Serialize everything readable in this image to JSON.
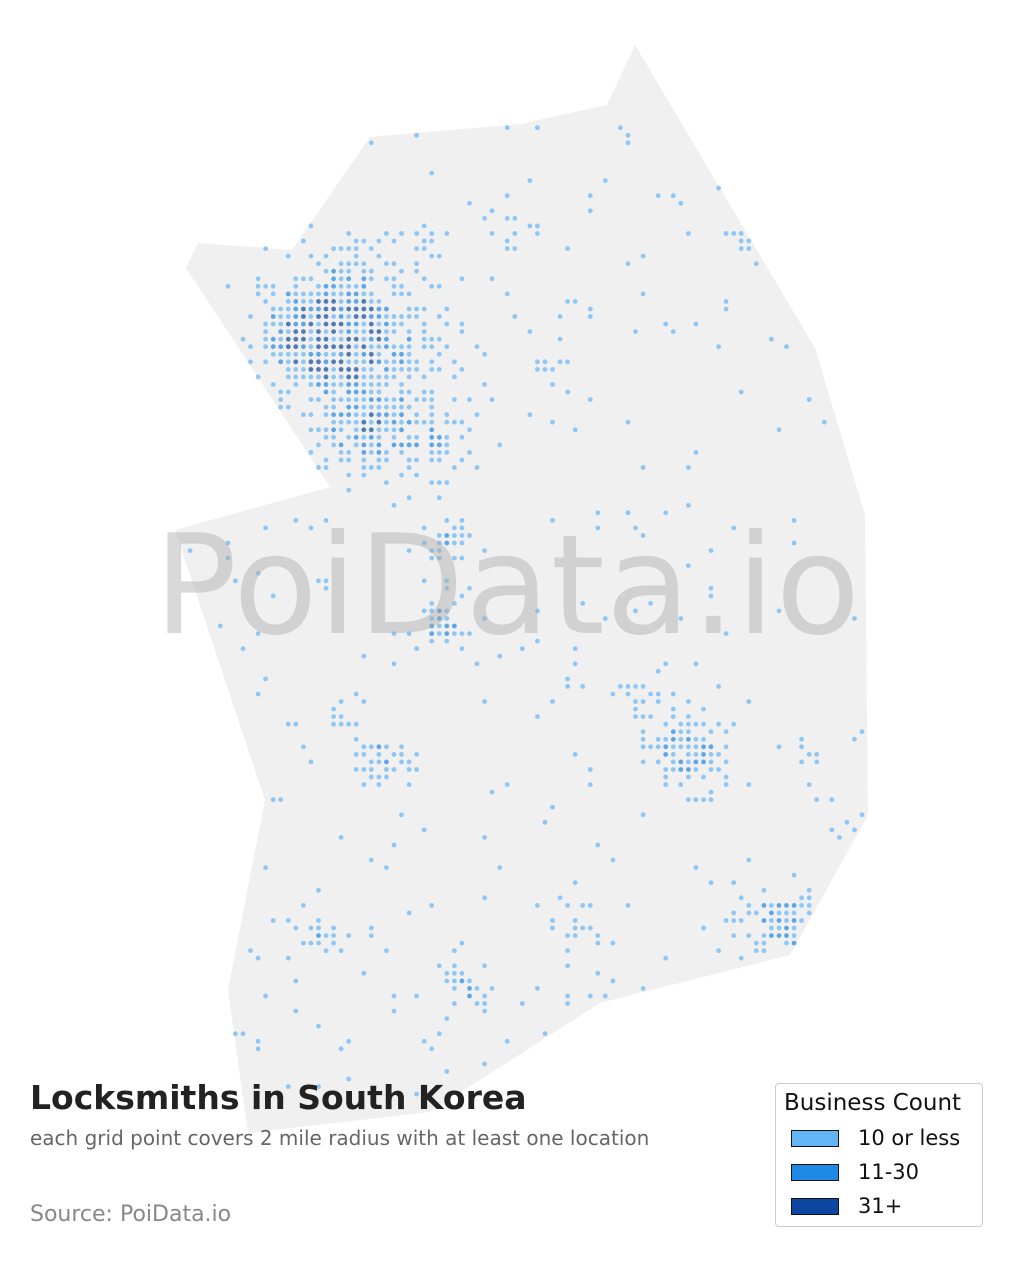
{
  "watermark": "PoiData.io",
  "title": "Locksmiths in South Korea",
  "subtitle": "each grid point covers 2 mile radius with at least one location",
  "source": "Source: PoiData.io",
  "map_style": {
    "land_color": "#f0f0f0",
    "point_opacity": 0.7
  },
  "legend": {
    "title": "Business Count",
    "items": [
      {
        "label": "10 or less",
        "color": "#64b5f6"
      },
      {
        "label": "11-30",
        "color": "#1e88e5"
      },
      {
        "label": "31+",
        "color": "#0d47a1"
      }
    ]
  }
}
